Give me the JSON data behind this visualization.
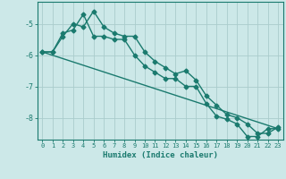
{
  "title": "",
  "xlabel": "Humidex (Indice chaleur)",
  "background_color": "#cce8e8",
  "grid_color": "#aacccc",
  "line_color": "#1a7a6e",
  "xlim": [
    -0.5,
    23.5
  ],
  "ylim": [
    -8.7,
    -4.3
  ],
  "yticks": [
    -8,
    -7,
    -6,
    -5
  ],
  "xticks": [
    0,
    1,
    2,
    3,
    4,
    5,
    6,
    7,
    8,
    9,
    10,
    11,
    12,
    13,
    14,
    15,
    16,
    17,
    18,
    19,
    20,
    21,
    22,
    23
  ],
  "series1_x": [
    0,
    1,
    2,
    3,
    4,
    5,
    6,
    7,
    8,
    9,
    10,
    11,
    12,
    13,
    14,
    15,
    16,
    17,
    18,
    19,
    20,
    21,
    22,
    23
  ],
  "series1_y": [
    -5.9,
    -5.9,
    -5.4,
    -5.0,
    -5.1,
    -4.6,
    -5.1,
    -5.3,
    -5.4,
    -5.4,
    -5.9,
    -6.2,
    -6.4,
    -6.6,
    -6.5,
    -6.8,
    -7.3,
    -7.6,
    -7.9,
    -8.0,
    -8.2,
    -8.5,
    -8.5,
    -8.3
  ],
  "series2_x": [
    0,
    1,
    2,
    3,
    4,
    5,
    6,
    7,
    8,
    9,
    10,
    11,
    12,
    13,
    14,
    15,
    16,
    17,
    18,
    19,
    20,
    21,
    22,
    23
  ],
  "series2_y": [
    -5.9,
    -5.9,
    -5.3,
    -5.2,
    -4.7,
    -5.4,
    -5.4,
    -5.5,
    -5.5,
    -6.0,
    -6.35,
    -6.55,
    -6.75,
    -6.75,
    -7.0,
    -7.0,
    -7.55,
    -7.95,
    -8.05,
    -8.2,
    -8.6,
    -8.6,
    -8.35,
    -8.35
  ],
  "series3_x": [
    0,
    23
  ],
  "series3_y": [
    -5.9,
    -8.35
  ],
  "markersize": 2.5,
  "linewidth": 1.0
}
